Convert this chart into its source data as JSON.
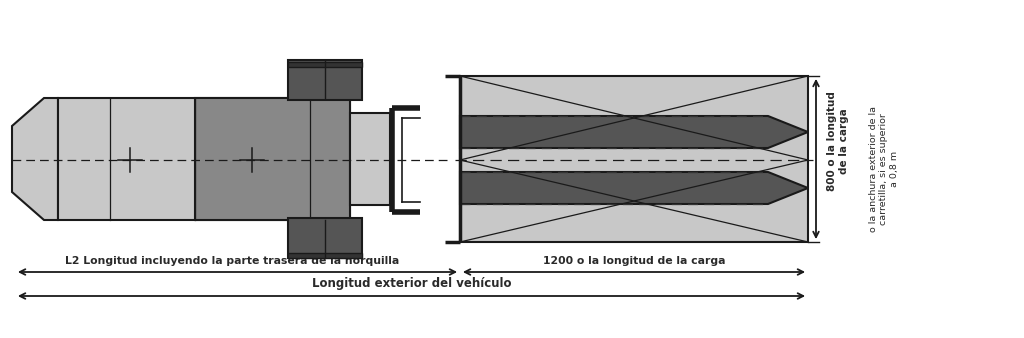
{
  "bg_color": "#ffffff",
  "light_gray": "#c8c8c8",
  "mid_gray": "#888888",
  "dark_gray": "#555555",
  "darker_gray": "#333333",
  "line_color": "#1a1a1a",
  "text_color": "#2a2a2a",
  "label_l2": "L2 Longitud incluyendo la parte trasera de la horquilla",
  "label_1200": "1200 o la longitud de la carga",
  "label_longitud": "Longitud exterior del vehículo",
  "label_800": "800 o la longitud\nde la carga",
  "label_anchura": "o la anchura exterior de la\ncarretilla, si es superior\na 0,8 m",
  "fig_width": 10.24,
  "fig_height": 3.38
}
